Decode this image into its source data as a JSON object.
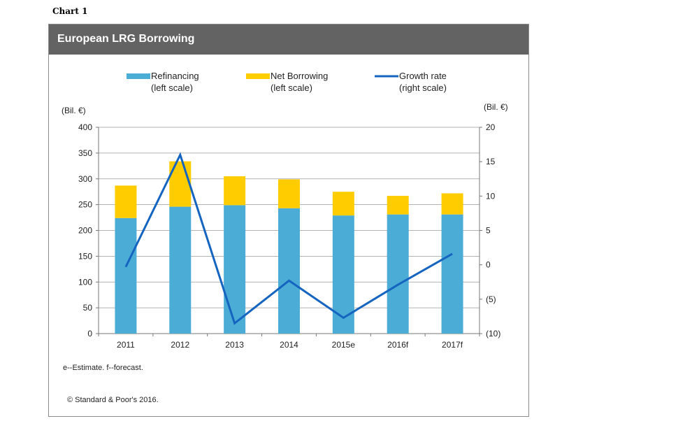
{
  "header": {
    "chart_number": "Chart 1"
  },
  "chart_data": {
    "type": "bar",
    "title": "European LRG Borrowing",
    "categories": [
      "2011",
      "2012",
      "2013",
      "2014",
      "2015e",
      "2016f",
      "2017f"
    ],
    "series": [
      {
        "name": "Refinancing",
        "legend_sub": "(left scale)",
        "kind": "bar-stack",
        "color": "#4bacd6",
        "values": [
          224,
          246,
          249,
          243,
          229,
          231,
          231
        ]
      },
      {
        "name": "Net Borrowing",
        "legend_sub": "(left scale)",
        "kind": "bar-stack",
        "color": "#ffcc00",
        "values": [
          63,
          88,
          56,
          56,
          46,
          36,
          41
        ]
      },
      {
        "name": "Growth rate",
        "legend_sub": "(right scale)",
        "kind": "line",
        "axis": "right",
        "color": "#1565c0",
        "values": [
          -0.3,
          16.0,
          -8.5,
          -2.3,
          -7.7,
          -2.9,
          1.6
        ]
      }
    ],
    "left_axis": {
      "label": "(Bil. €)",
      "min": 0,
      "max": 400,
      "ticks": [
        0,
        50,
        100,
        150,
        200,
        250,
        300,
        350,
        400
      ],
      "tick_labels": [
        "0",
        "50",
        "100",
        "150",
        "200",
        "250",
        "300",
        "350",
        "400"
      ]
    },
    "right_axis": {
      "label": "(Bil. €)",
      "min": -10,
      "max": 20,
      "ticks": [
        -10,
        -5,
        0,
        5,
        10,
        15,
        20
      ],
      "tick_labels": [
        "(10)",
        "(5)",
        "0",
        "5",
        "10",
        "15",
        "20"
      ]
    },
    "grid": true,
    "legend_position": "top"
  },
  "notes": {
    "estimate_note": "e--Estimate. f--forecast.",
    "copyright": "© Standard & Poor's 2016."
  }
}
